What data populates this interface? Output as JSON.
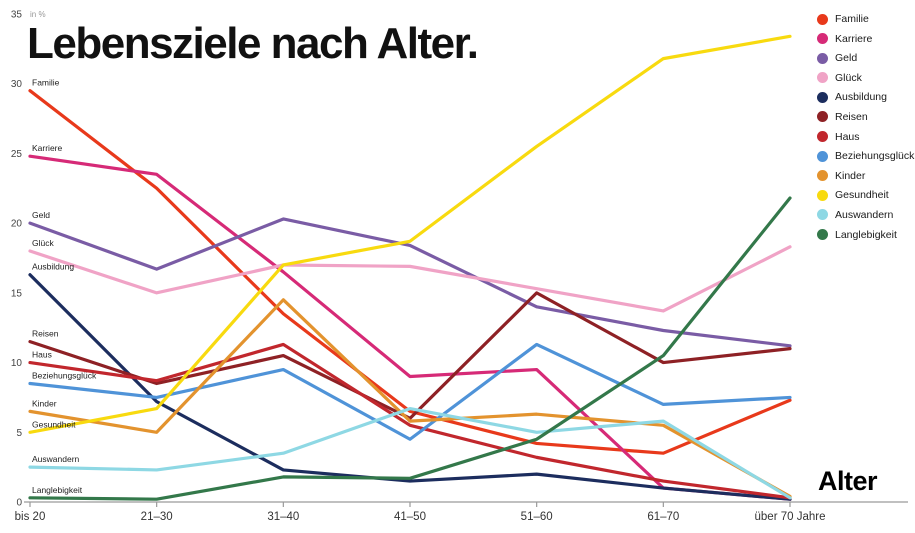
{
  "title": "Lebensziele nach Alter.",
  "unit_label": "in %",
  "axis_title_x": "Alter",
  "chart_data": {
    "type": "line",
    "categories": [
      "bis 20",
      "21–30",
      "31–40",
      "41–50",
      "51–60",
      "61–70",
      "über 70 Jahre"
    ],
    "ylim": [
      0,
      35
    ],
    "yticks": [
      0,
      5,
      10,
      15,
      20,
      25,
      30,
      35
    ],
    "grid": false,
    "legend_position": "top-right",
    "series": [
      {
        "name": "Familie",
        "color": "#e8391b",
        "values": [
          29.5,
          22.5,
          13.5,
          6.5,
          4.2,
          3.5,
          7.3
        ]
      },
      {
        "name": "Karriere",
        "color": "#d62a77",
        "values": [
          24.8,
          23.5,
          16.5,
          9.0,
          9.5,
          1.0,
          0.2
        ]
      },
      {
        "name": "Geld",
        "color": "#7a5ca5",
        "values": [
          20.0,
          16.7,
          20.3,
          18.4,
          14.0,
          12.3,
          11.2
        ]
      },
      {
        "name": "Glück",
        "color": "#f0a3c6",
        "values": [
          18.0,
          15.0,
          17.0,
          16.9,
          15.3,
          13.7,
          18.3
        ]
      },
      {
        "name": "Ausbildung",
        "color": "#1c2d5e",
        "values": [
          16.3,
          7.2,
          2.3,
          1.5,
          2.0,
          1.0,
          0.2
        ]
      },
      {
        "name": "Reisen",
        "color": "#8e2125",
        "values": [
          11.5,
          8.5,
          10.5,
          6.0,
          15.0,
          10.0,
          11.0
        ]
      },
      {
        "name": "Haus",
        "color": "#c1272d",
        "values": [
          10.0,
          8.7,
          11.3,
          5.5,
          3.2,
          1.5,
          0.3
        ]
      },
      {
        "name": "Beziehungsglück",
        "color": "#4f93d8",
        "values": [
          8.5,
          7.5,
          9.5,
          4.5,
          11.3,
          7.0,
          7.5
        ]
      },
      {
        "name": "Kinder",
        "color": "#e3932e",
        "values": [
          6.5,
          5.0,
          14.5,
          5.8,
          6.3,
          5.5,
          0.4
        ]
      },
      {
        "name": "Gesundheit",
        "color": "#f8da0f",
        "values": [
          5.0,
          6.7,
          17.0,
          18.7,
          25.5,
          31.8,
          33.4
        ]
      },
      {
        "name": "Auswandern",
        "color": "#8ed8e4",
        "values": [
          2.5,
          2.3,
          3.5,
          6.7,
          5.0,
          5.8,
          0.3
        ]
      },
      {
        "name": "Langlebigkeit",
        "color": "#33784a",
        "values": [
          0.3,
          0.2,
          1.8,
          1.7,
          4.5,
          10.5,
          21.8
        ]
      }
    ]
  }
}
